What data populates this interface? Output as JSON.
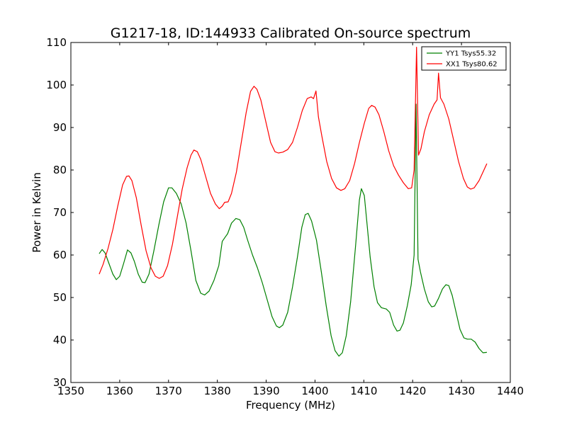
{
  "chart_data": {
    "type": "line",
    "title": "G1217-18, ID:144933 Calibrated On-source spectrum",
    "xlabel": "Frequency (MHz)",
    "ylabel": "Power in Kelvin",
    "xlim": [
      1350,
      1440
    ],
    "ylim": [
      30,
      110
    ],
    "xticks": [
      "1350",
      "1360",
      "1370",
      "1380",
      "1390",
      "1400",
      "1410",
      "1420",
      "1430",
      "1440"
    ],
    "yticks": [
      "30",
      "40",
      "50",
      "60",
      "70",
      "80",
      "90",
      "100",
      "110"
    ],
    "grid": false,
    "legend_position": "top-right",
    "series": [
      {
        "name": "YY1 Tsys55.32",
        "color": "#008000",
        "points": [
          [
            1355.8,
            60.3
          ],
          [
            1356.4,
            61.3
          ],
          [
            1357.0,
            60.5
          ],
          [
            1357.8,
            58.0
          ],
          [
            1358.6,
            55.5
          ],
          [
            1359.3,
            54.2
          ],
          [
            1360.0,
            55.0
          ],
          [
            1360.8,
            58.0
          ],
          [
            1361.6,
            61.2
          ],
          [
            1362.3,
            60.5
          ],
          [
            1363.0,
            58.5
          ],
          [
            1363.8,
            55.5
          ],
          [
            1364.6,
            53.6
          ],
          [
            1365.2,
            53.5
          ],
          [
            1366.0,
            55.5
          ],
          [
            1367.0,
            61.0
          ],
          [
            1368.0,
            67.0
          ],
          [
            1369.0,
            72.5
          ],
          [
            1370.0,
            75.8
          ],
          [
            1370.7,
            75.8
          ],
          [
            1371.6,
            74.5
          ],
          [
            1372.6,
            72.0
          ],
          [
            1373.6,
            67.5
          ],
          [
            1374.6,
            61.0
          ],
          [
            1375.6,
            54.0
          ],
          [
            1376.6,
            51.0
          ],
          [
            1377.4,
            50.6
          ],
          [
            1378.3,
            51.5
          ],
          [
            1379.3,
            54.0
          ],
          [
            1380.3,
            57.5
          ],
          [
            1381.0,
            63.2
          ],
          [
            1381.6,
            64.2
          ],
          [
            1382.1,
            65.0
          ],
          [
            1382.9,
            67.5
          ],
          [
            1383.8,
            68.6
          ],
          [
            1384.6,
            68.3
          ],
          [
            1385.4,
            66.5
          ],
          [
            1386.2,
            63.5
          ],
          [
            1387.2,
            60.0
          ],
          [
            1388.2,
            57.0
          ],
          [
            1389.2,
            53.5
          ],
          [
            1390.2,
            49.5
          ],
          [
            1391.2,
            45.5
          ],
          [
            1392.1,
            43.3
          ],
          [
            1392.7,
            42.9
          ],
          [
            1393.4,
            43.5
          ],
          [
            1394.4,
            46.5
          ],
          [
            1395.4,
            52.5
          ],
          [
            1396.4,
            59.5
          ],
          [
            1397.3,
            66.5
          ],
          [
            1398.0,
            69.5
          ],
          [
            1398.6,
            69.8
          ],
          [
            1399.3,
            68.0
          ],
          [
            1400.3,
            63.5
          ],
          [
            1401.3,
            56.0
          ],
          [
            1402.3,
            48.0
          ],
          [
            1403.3,
            41.0
          ],
          [
            1404.1,
            37.5
          ],
          [
            1404.9,
            36.2
          ],
          [
            1405.6,
            37.0
          ],
          [
            1406.4,
            41.0
          ],
          [
            1407.3,
            49.0
          ],
          [
            1408.3,
            62.0
          ],
          [
            1409.1,
            73.0
          ],
          [
            1409.5,
            75.6
          ],
          [
            1410.1,
            74.0
          ],
          [
            1410.6,
            68.0
          ],
          [
            1411.3,
            59.5
          ],
          [
            1412.1,
            52.5
          ],
          [
            1412.8,
            48.8
          ],
          [
            1413.6,
            47.6
          ],
          [
            1414.6,
            47.3
          ],
          [
            1415.3,
            46.5
          ],
          [
            1416.1,
            43.5
          ],
          [
            1416.8,
            42.1
          ],
          [
            1417.4,
            42.3
          ],
          [
            1418.1,
            44.0
          ],
          [
            1418.9,
            48.0
          ],
          [
            1419.7,
            53.0
          ],
          [
            1420.3,
            60.0
          ],
          [
            1420.7,
            95.5
          ],
          [
            1421.1,
            59.0
          ],
          [
            1421.6,
            56.0
          ],
          [
            1422.4,
            52.0
          ],
          [
            1423.2,
            49.0
          ],
          [
            1423.9,
            47.8
          ],
          [
            1424.5,
            48.0
          ],
          [
            1425.3,
            49.8
          ],
          [
            1426.1,
            52.0
          ],
          [
            1426.8,
            53.0
          ],
          [
            1427.4,
            52.8
          ],
          [
            1428.1,
            50.5
          ],
          [
            1428.9,
            46.5
          ],
          [
            1429.7,
            42.5
          ],
          [
            1430.5,
            40.5
          ],
          [
            1431.2,
            40.2
          ],
          [
            1432.0,
            40.2
          ],
          [
            1432.8,
            39.5
          ],
          [
            1433.6,
            38.0
          ],
          [
            1434.4,
            37.0
          ],
          [
            1435.2,
            37.1
          ]
        ]
      },
      {
        "name": "XX1 Tsys80.62",
        "color": "#ff0000",
        "points": [
          [
            1355.8,
            55.5
          ],
          [
            1356.6,
            57.8
          ],
          [
            1357.6,
            61.5
          ],
          [
            1358.6,
            66.0
          ],
          [
            1359.6,
            71.5
          ],
          [
            1360.6,
            76.5
          ],
          [
            1361.4,
            78.5
          ],
          [
            1361.9,
            78.6
          ],
          [
            1362.5,
            77.5
          ],
          [
            1363.4,
            73.5
          ],
          [
            1364.4,
            67.0
          ],
          [
            1365.4,
            61.0
          ],
          [
            1366.4,
            57.0
          ],
          [
            1367.3,
            55.0
          ],
          [
            1368.1,
            54.5
          ],
          [
            1368.9,
            55.0
          ],
          [
            1369.8,
            57.5
          ],
          [
            1370.8,
            62.5
          ],
          [
            1371.8,
            69.0
          ],
          [
            1372.8,
            75.5
          ],
          [
            1373.8,
            80.5
          ],
          [
            1374.6,
            83.5
          ],
          [
            1375.2,
            84.7
          ],
          [
            1375.9,
            84.3
          ],
          [
            1376.6,
            82.5
          ],
          [
            1377.6,
            78.5
          ],
          [
            1378.6,
            74.5
          ],
          [
            1379.6,
            72.0
          ],
          [
            1380.4,
            70.9
          ],
          [
            1381.0,
            71.5
          ],
          [
            1381.5,
            72.4
          ],
          [
            1382.2,
            72.5
          ],
          [
            1382.9,
            74.5
          ],
          [
            1383.9,
            79.5
          ],
          [
            1384.9,
            86.5
          ],
          [
            1385.9,
            93.5
          ],
          [
            1386.8,
            98.5
          ],
          [
            1387.5,
            99.7
          ],
          [
            1388.1,
            99.0
          ],
          [
            1388.9,
            96.5
          ],
          [
            1389.9,
            91.5
          ],
          [
            1390.9,
            86.5
          ],
          [
            1391.8,
            84.3
          ],
          [
            1392.5,
            84.0
          ],
          [
            1393.4,
            84.2
          ],
          [
            1394.4,
            84.8
          ],
          [
            1395.4,
            86.5
          ],
          [
            1396.4,
            90.0
          ],
          [
            1397.4,
            94.0
          ],
          [
            1398.4,
            96.8
          ],
          [
            1399.2,
            97.2
          ],
          [
            1399.7,
            96.8
          ],
          [
            1400.2,
            98.6
          ],
          [
            1400.7,
            92.5
          ],
          [
            1401.4,
            88.0
          ],
          [
            1402.4,
            82.0
          ],
          [
            1403.4,
            78.0
          ],
          [
            1404.4,
            75.8
          ],
          [
            1405.3,
            75.2
          ],
          [
            1406.1,
            75.6
          ],
          [
            1407.1,
            77.5
          ],
          [
            1408.1,
            81.5
          ],
          [
            1409.1,
            86.5
          ],
          [
            1410.1,
            91.0
          ],
          [
            1411.0,
            94.5
          ],
          [
            1411.6,
            95.2
          ],
          [
            1412.3,
            94.8
          ],
          [
            1413.1,
            93.0
          ],
          [
            1414.1,
            89.0
          ],
          [
            1415.1,
            84.5
          ],
          [
            1416.1,
            81.0
          ],
          [
            1417.1,
            78.8
          ],
          [
            1418.1,
            77.0
          ],
          [
            1419.1,
            75.6
          ],
          [
            1419.8,
            75.8
          ],
          [
            1420.3,
            80.0
          ],
          [
            1420.8,
            108.9
          ],
          [
            1421.2,
            83.5
          ],
          [
            1421.7,
            85.0
          ],
          [
            1422.4,
            89.0
          ],
          [
            1423.4,
            93.0
          ],
          [
            1424.4,
            95.5
          ],
          [
            1425.0,
            96.5
          ],
          [
            1425.3,
            102.8
          ],
          [
            1425.7,
            97.0
          ],
          [
            1426.4,
            95.5
          ],
          [
            1427.4,
            92.0
          ],
          [
            1428.4,
            87.0
          ],
          [
            1429.4,
            82.0
          ],
          [
            1430.4,
            78.0
          ],
          [
            1431.2,
            76.0
          ],
          [
            1431.9,
            75.5
          ],
          [
            1432.6,
            75.8
          ],
          [
            1433.6,
            77.5
          ],
          [
            1434.6,
            80.0
          ],
          [
            1435.2,
            81.5
          ]
        ]
      }
    ]
  }
}
